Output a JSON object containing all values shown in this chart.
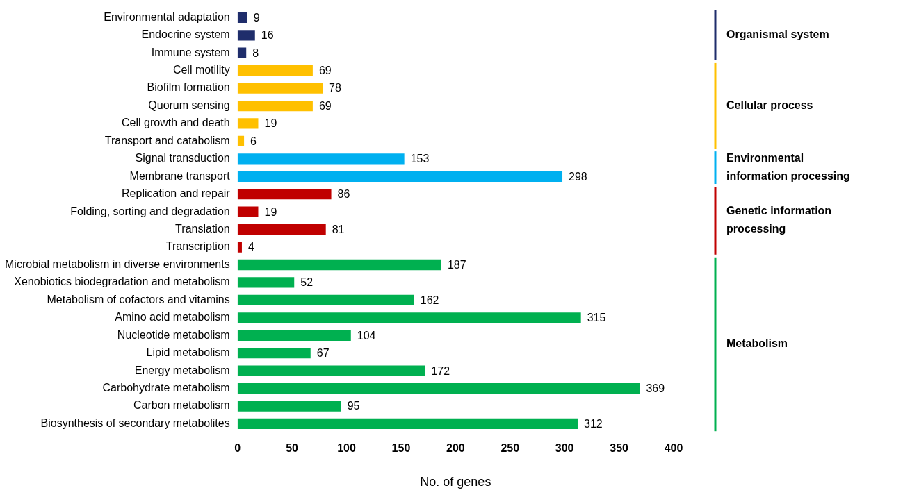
{
  "chart_data": {
    "type": "bar",
    "orientation": "horizontal",
    "xlabel": "No. of genes",
    "categories": [
      "Environmental adaptation",
      "Endocrine system",
      "Immune system",
      "Cell motility",
      "Biofilm formation",
      "Quorum sensing",
      "Cell growth and death",
      "Transport and catabolism",
      "Signal transduction",
      "Membrane transport",
      "Replication and repair",
      "Folding, sorting and degradation",
      "Translation",
      "Transcription",
      "Microbial metabolism in diverse environments",
      "Xenobiotics biodegradation and metabolism",
      "Metabolism of cofactors and vitamins",
      "Amino acid metabolism",
      "Nucleotide metabolism",
      "Lipid metabolism",
      "Energy metabolism",
      "Carbohydrate metabolism",
      "Carbon metabolism",
      "Biosynthesis of secondary metabolites"
    ],
    "series": [
      {
        "name": "Organismal system",
        "color": "#1f2d6b",
        "values": [
          9,
          16,
          8,
          null,
          null,
          null,
          null,
          null,
          null,
          null,
          null,
          null,
          null,
          null,
          null,
          null,
          null,
          null,
          null,
          null,
          null,
          null,
          null,
          null
        ]
      },
      {
        "name": "Cellular process",
        "color": "#ffc000",
        "values": [
          null,
          null,
          null,
          69,
          78,
          69,
          19,
          6,
          null,
          null,
          null,
          null,
          null,
          null,
          null,
          null,
          null,
          null,
          null,
          null,
          null,
          null,
          null,
          null
        ]
      },
      {
        "name": "Environmental information processing",
        "color": "#00b0f0",
        "values": [
          null,
          null,
          null,
          null,
          null,
          null,
          null,
          null,
          153,
          298,
          null,
          null,
          null,
          null,
          null,
          null,
          null,
          null,
          null,
          null,
          null,
          null,
          null,
          null
        ]
      },
      {
        "name": "Genetic information processing",
        "color": "#c00000",
        "values": [
          null,
          null,
          null,
          null,
          null,
          null,
          null,
          null,
          null,
          null,
          86,
          19,
          81,
          4,
          null,
          null,
          null,
          null,
          null,
          null,
          null,
          null,
          null,
          null
        ]
      },
      {
        "name": "Metabolism",
        "color": "#00b050",
        "values": [
          null,
          null,
          null,
          null,
          null,
          null,
          null,
          null,
          null,
          null,
          null,
          null,
          null,
          null,
          187,
          52,
          162,
          315,
          104,
          67,
          172,
          369,
          95,
          312
        ]
      }
    ],
    "data_labels": true,
    "xlim": [
      0,
      400
    ],
    "xticks": [
      0,
      50,
      100,
      150,
      200,
      250,
      300,
      350,
      400
    ],
    "grid": false,
    "legend": false
  }
}
